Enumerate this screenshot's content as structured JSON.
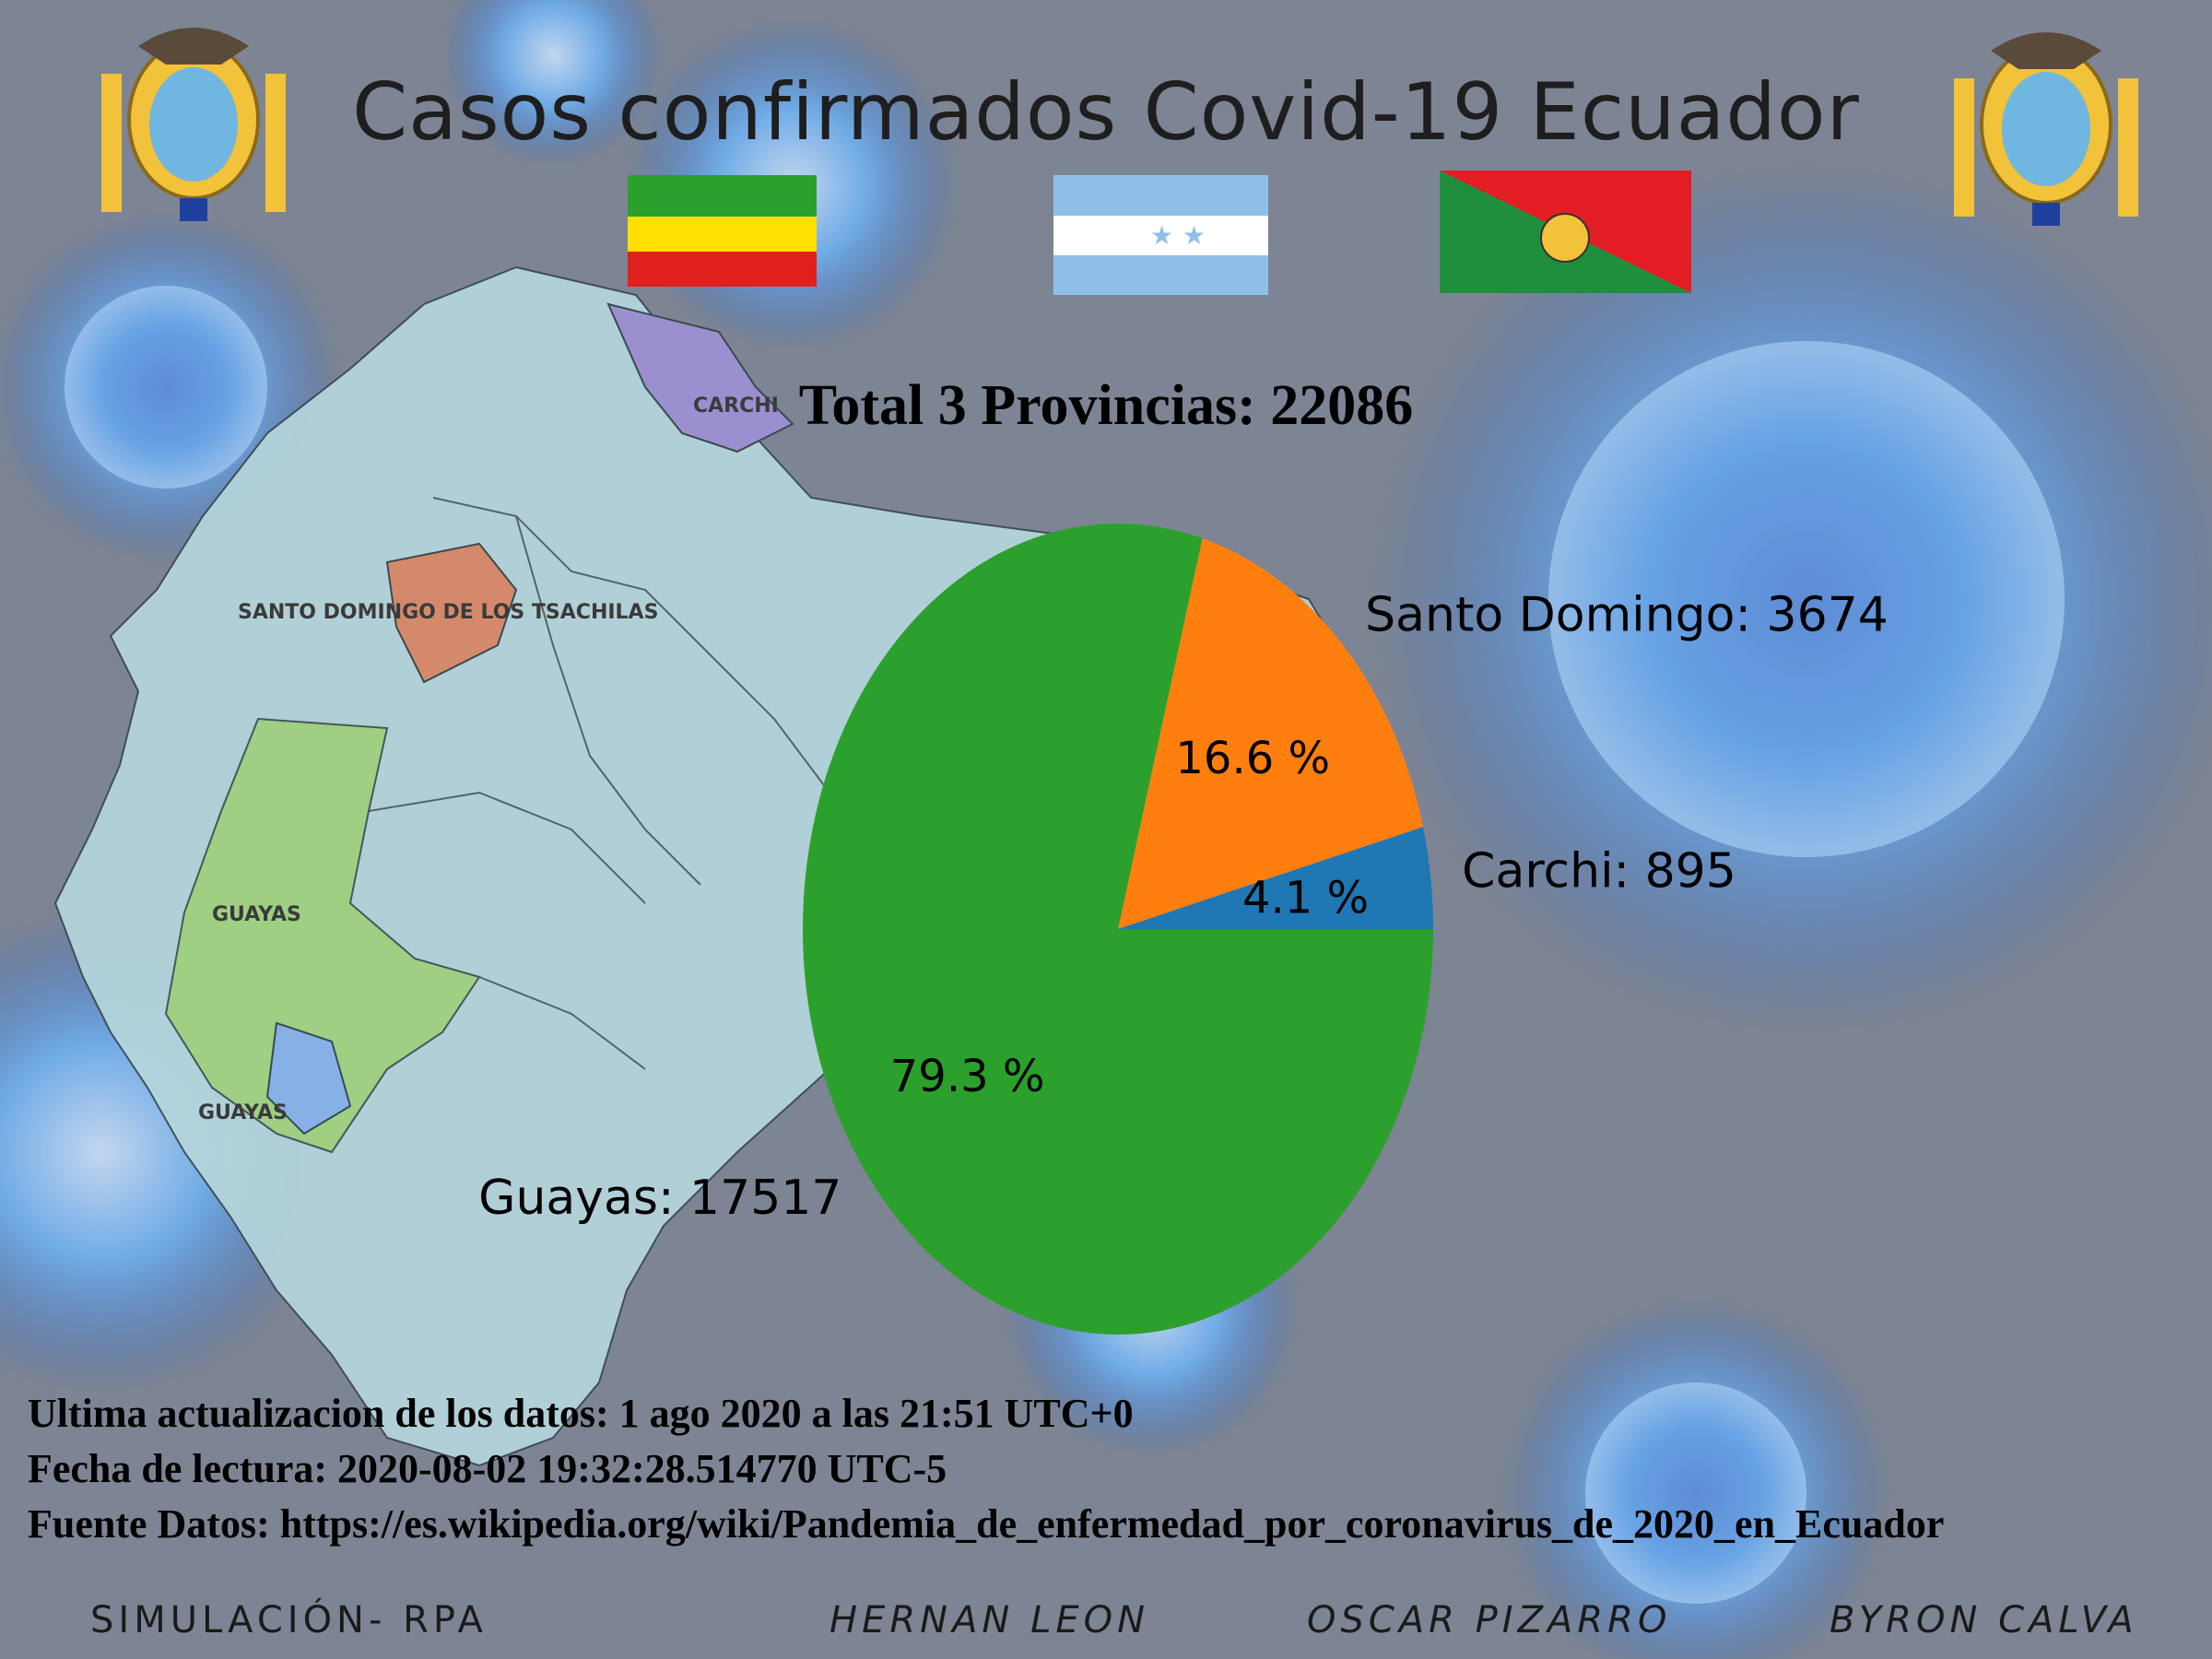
{
  "title": "Casos confirmados Covid-19 Ecuador",
  "map_labels": {
    "carchi": "CARCHI",
    "santo_domingo": "SANTO DOMINGO DE LOS TSACHILAS",
    "guayas_1": "GUAYAS",
    "guayas_2": "GUAYAS"
  },
  "footer": {
    "update": "Ultima actualizacion de los datos: 1 ago 2020 a las 21:51 UTC+0",
    "read_date": "Fecha de lectura: 2020-08-02 19:32:28.514770 UTC-5",
    "source": "Fuente Datos: https://es.wikipedia.org/wiki/Pandemia_de_enfermedad_por_coronavirus_de_2020_en_Ecuador"
  },
  "credits": {
    "simulation": "SIMULACIÓN- RPA",
    "author1": "HERNAN LEON",
    "author2": "OSCAR PIZARRO",
    "author3": "BYRON CALVA"
  },
  "colors": {
    "carchi": "#1f77b4",
    "santo_domingo": "#ff7f0e",
    "guayas": "#2ca02c"
  },
  "chart_data": {
    "type": "pie",
    "title": "Total 3 Provincias: 22086",
    "slices": [
      {
        "label": "Carchi: 895",
        "value": 895,
        "percent_label": "4.1 %",
        "color": "#1f77b4"
      },
      {
        "label": "Santo Domingo: 3674",
        "value": 3674,
        "percent_label": "16.6 %",
        "color": "#ff7f0e"
      },
      {
        "label": "Guayas: 17517",
        "value": 17517,
        "percent_label": "79.3 %",
        "color": "#2ca02c"
      }
    ],
    "start_angle_deg": 0,
    "direction": "counterclockwise"
  }
}
